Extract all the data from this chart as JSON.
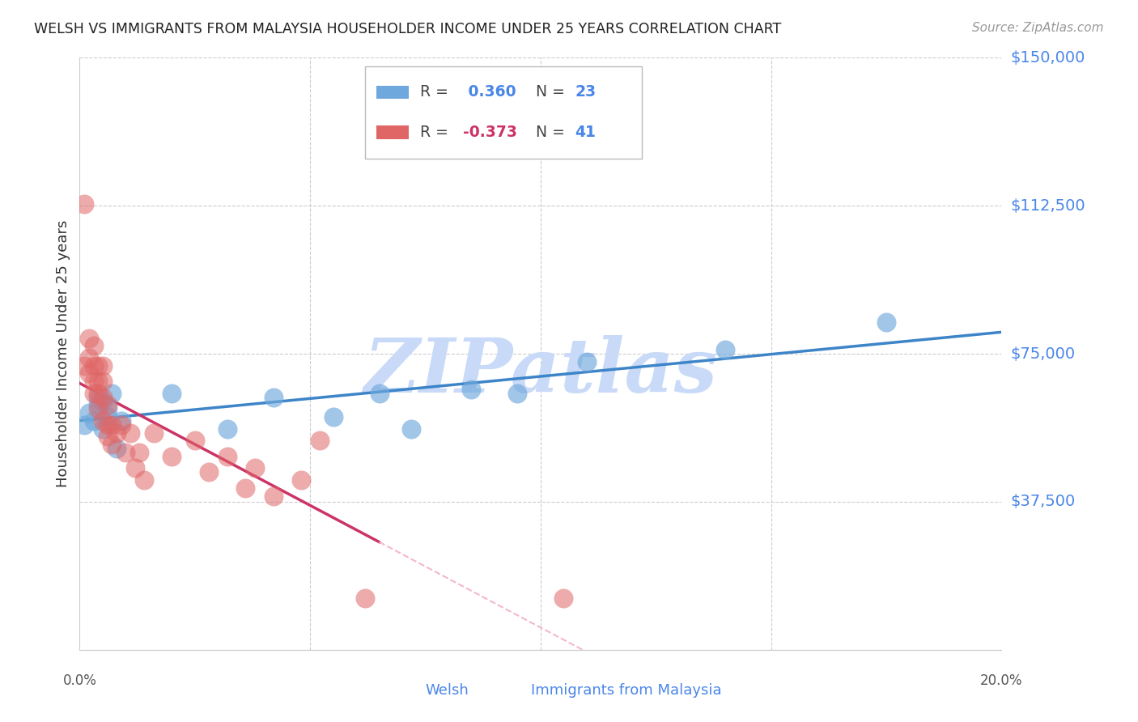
{
  "title": "WELSH VS IMMIGRANTS FROM MALAYSIA HOUSEHOLDER INCOME UNDER 25 YEARS CORRELATION CHART",
  "source": "Source: ZipAtlas.com",
  "ylabel": "Householder Income Under 25 years",
  "xlim": [
    0.0,
    0.2
  ],
  "ylim": [
    0,
    150000
  ],
  "yticks": [
    0,
    37500,
    75000,
    112500,
    150000
  ],
  "ytick_labels": [
    "",
    "$37,500",
    "$75,000",
    "$112,500",
    "$150,000"
  ],
  "xtick_labels_show": [
    "0.0%",
    "20.0%"
  ],
  "xtick_positions_show": [
    0.0,
    0.2
  ],
  "welsh_R": 0.36,
  "welsh_N": 23,
  "malaysia_R": -0.373,
  "malaysia_N": 41,
  "welsh_color": "#6fa8dc",
  "malaysia_color": "#e06666",
  "welsh_line_color": "#3d85c8",
  "malaysia_line_color": "#cc3366",
  "trendline_ext_color": "#f4b8c8",
  "background_color": "#ffffff",
  "grid_color": "#cccccc",
  "watermark_color": "#c9daf8",
  "right_label_color": "#4a86e8",
  "welsh_x": [
    0.001,
    0.002,
    0.003,
    0.004,
    0.004,
    0.005,
    0.005,
    0.006,
    0.006,
    0.007,
    0.008,
    0.009,
    0.02,
    0.032,
    0.042,
    0.055,
    0.065,
    0.072,
    0.085,
    0.095,
    0.11,
    0.14,
    0.175
  ],
  "welsh_y": [
    57000,
    60000,
    58000,
    62000,
    64000,
    63000,
    56000,
    61000,
    59000,
    65000,
    51000,
    58000,
    65000,
    56000,
    64000,
    59000,
    65000,
    56000,
    66000,
    65000,
    73000,
    76000,
    83000
  ],
  "malaysia_x": [
    0.001,
    0.001,
    0.002,
    0.002,
    0.002,
    0.003,
    0.003,
    0.003,
    0.003,
    0.004,
    0.004,
    0.004,
    0.004,
    0.005,
    0.005,
    0.005,
    0.005,
    0.006,
    0.006,
    0.006,
    0.007,
    0.007,
    0.008,
    0.009,
    0.01,
    0.011,
    0.012,
    0.013,
    0.014,
    0.016,
    0.02,
    0.025,
    0.028,
    0.032,
    0.036,
    0.038,
    0.042,
    0.048,
    0.052,
    0.062,
    0.105
  ],
  "malaysia_y": [
    113000,
    72000,
    79000,
    74000,
    70000,
    77000,
    72000,
    68000,
    65000,
    72000,
    68000,
    65000,
    61000,
    72000,
    68000,
    64000,
    58000,
    62000,
    57000,
    54000,
    57000,
    52000,
    55000,
    57000,
    50000,
    55000,
    46000,
    50000,
    43000,
    55000,
    49000,
    53000,
    45000,
    49000,
    41000,
    46000,
    39000,
    43000,
    53000,
    13000,
    13000
  ]
}
